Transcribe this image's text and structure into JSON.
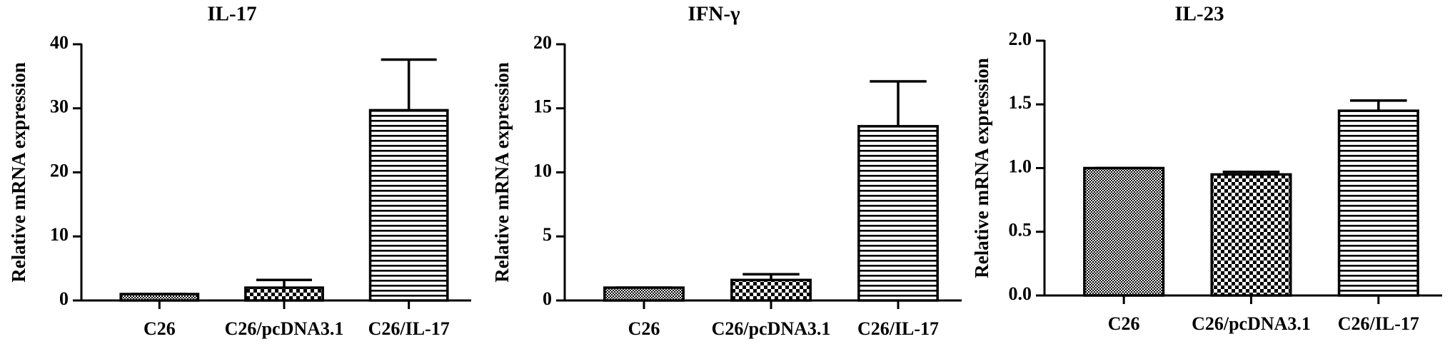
{
  "chart_data": [
    {
      "type": "bar",
      "title": "IL-17",
      "y_label": "Relative mRNA expression",
      "categories": [
        "C26",
        "C26/pcDNA3.1",
        "C26/IL-17"
      ],
      "values": [
        1,
        2,
        29.7
      ],
      "errors": [
        0,
        1.2,
        7.9
      ],
      "color": "#000000",
      "ylim": [
        0,
        40
      ],
      "yticks": [
        0,
        10,
        20,
        30,
        40
      ]
    },
    {
      "type": "bar",
      "title": "IFN-γ",
      "y_label": "Relative mRNA expression",
      "categories": [
        "C26",
        "C26/pcDNA3.1",
        "C26/IL-17"
      ],
      "values": [
        1,
        1.6,
        13.6
      ],
      "errors": [
        0,
        0.45,
        3.5
      ],
      "color": "#000000",
      "ylim": [
        0,
        20
      ],
      "yticks": [
        0,
        5,
        10,
        15,
        20
      ]
    },
    {
      "type": "bar",
      "title": "IL-23",
      "y_label": "Relative mRNA expression",
      "categories": [
        "C26",
        "C26/pcDNA3.1",
        "C26/IL-17"
      ],
      "values": [
        1.0,
        0.95,
        1.45
      ],
      "errors": [
        0,
        0.02,
        0.08
      ],
      "color": "#000000",
      "ylim": [
        0,
        2.0
      ],
      "yticks": [
        {
          "value": 0,
          "label": "0.0"
        },
        {
          "value": 0.5,
          "label": "0.5"
        },
        {
          "value": 1.0,
          "label": "1.0"
        },
        {
          "value": 1.5,
          "label": "1.5"
        },
        {
          "value": 2.0,
          "label": "2.0"
        }
      ]
    }
  ]
}
